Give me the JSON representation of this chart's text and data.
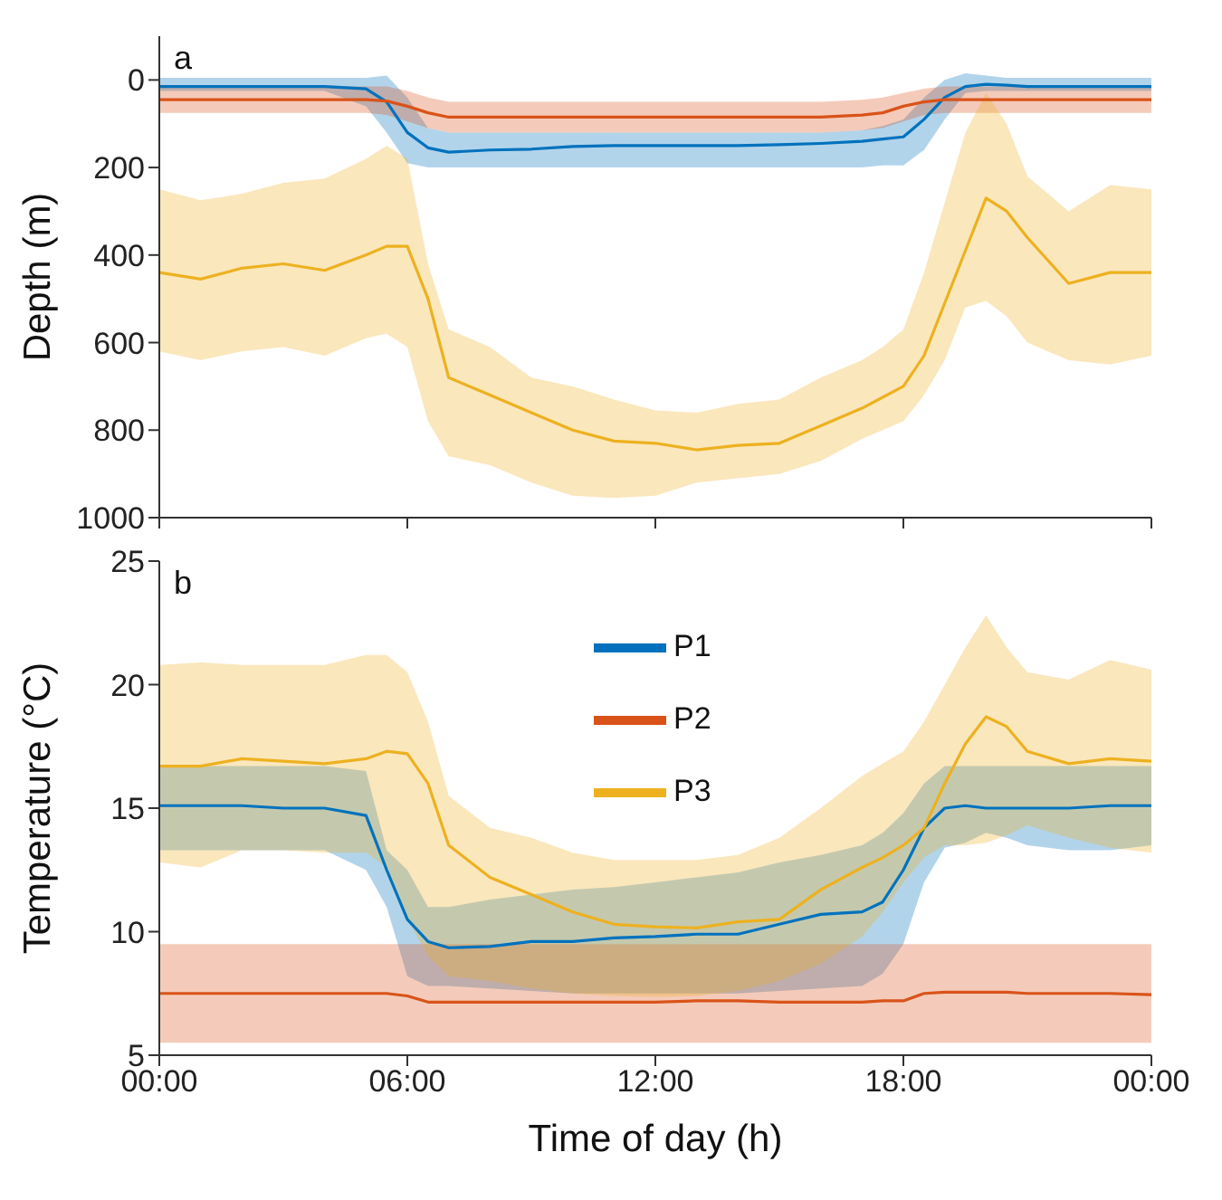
{
  "chart_data": [
    {
      "type": "line",
      "ylabel": "Depth (m)",
      "annotations": [
        "a"
      ],
      "tick_labels": "y",
      "grid": false,
      "marker": "none",
      "x": [
        0,
        1,
        2,
        3,
        4,
        5,
        5.5,
        6,
        6.5,
        7,
        8,
        9,
        10,
        11,
        12,
        13,
        14,
        15,
        16,
        17,
        17.5,
        18,
        18.5,
        19,
        19.5,
        20,
        20.5,
        21,
        22,
        23,
        24
      ],
      "xlim": [
        0,
        24
      ],
      "xticks": [
        0,
        6,
        12,
        18,
        24
      ],
      "ylim": [
        1000,
        -100
      ],
      "yticks": [
        0,
        200,
        400,
        600,
        800,
        1000
      ],
      "series": [
        {
          "color": "#0072bd",
          "values": [
            15,
            15,
            15,
            15,
            15,
            20,
            50,
            120,
            155,
            165,
            160,
            158,
            152,
            150,
            150,
            150,
            150,
            148,
            145,
            140,
            135,
            130,
            90,
            40,
            15,
            10,
            12,
            15,
            15,
            15,
            15
          ],
          "lower": [
            -5,
            -5,
            -5,
            -5,
            -5,
            -5,
            -10,
            40,
            110,
            120,
            120,
            120,
            120,
            120,
            120,
            120,
            120,
            120,
            120,
            115,
            105,
            90,
            40,
            0,
            -15,
            -10,
            -5,
            -5,
            -5,
            -5,
            -5
          ],
          "upper": [
            25,
            25,
            25,
            25,
            25,
            60,
            120,
            190,
            200,
            200,
            200,
            200,
            200,
            200,
            200,
            200,
            200,
            200,
            200,
            200,
            195,
            195,
            160,
            90,
            30,
            25,
            25,
            25,
            25,
            25,
            25
          ]
        },
        {
          "color": "#d95319",
          "values": [
            45,
            45,
            45,
            45,
            45,
            45,
            48,
            60,
            75,
            85,
            85,
            85,
            85,
            85,
            85,
            85,
            85,
            85,
            85,
            80,
            75,
            60,
            50,
            45,
            45,
            45,
            45,
            45,
            45,
            45,
            45
          ],
          "lower": [
            15,
            15,
            15,
            15,
            15,
            15,
            15,
            25,
            40,
            50,
            50,
            50,
            50,
            50,
            50,
            50,
            50,
            50,
            50,
            45,
            40,
            30,
            20,
            15,
            15,
            15,
            15,
            15,
            15,
            15,
            15
          ],
          "upper": [
            75,
            75,
            75,
            75,
            75,
            75,
            80,
            95,
            110,
            120,
            120,
            120,
            120,
            120,
            120,
            120,
            120,
            120,
            120,
            115,
            110,
            95,
            80,
            75,
            75,
            75,
            75,
            75,
            75,
            75,
            75
          ]
        },
        {
          "color": "#edb120",
          "values": [
            440,
            455,
            430,
            420,
            435,
            400,
            380,
            380,
            500,
            680,
            720,
            760,
            800,
            825,
            830,
            845,
            835,
            830,
            790,
            750,
            725,
            700,
            630,
            510,
            390,
            270,
            300,
            360,
            465,
            440,
            440
          ],
          "lower": [
            250,
            275,
            260,
            235,
            225,
            180,
            150,
            180,
            420,
            570,
            610,
            680,
            700,
            730,
            755,
            760,
            740,
            730,
            680,
            640,
            610,
            570,
            440,
            280,
            120,
            30,
            100,
            220,
            300,
            240,
            250
          ],
          "upper": [
            620,
            640,
            620,
            610,
            630,
            590,
            580,
            610,
            780,
            860,
            880,
            920,
            950,
            955,
            950,
            920,
            910,
            900,
            870,
            820,
            800,
            780,
            720,
            640,
            520,
            505,
            540,
            600,
            640,
            650,
            630
          ]
        }
      ]
    },
    {
      "type": "line",
      "xlabel": "Time of day (h)",
      "ylabel": "Temperature (°C)",
      "annotations": [
        "b"
      ],
      "grid": false,
      "marker": "none",
      "legend": "top",
      "x": [
        0,
        1,
        2,
        3,
        4,
        5,
        5.5,
        6,
        6.5,
        7,
        8,
        9,
        10,
        11,
        12,
        13,
        14,
        15,
        16,
        17,
        17.5,
        18,
        18.5,
        19,
        19.5,
        20,
        20.5,
        21,
        22,
        23,
        24
      ],
      "xlim": [
        0,
        24
      ],
      "xticks": [
        {
          "value": 0,
          "label": "00:00"
        },
        {
          "value": 6,
          "label": "06:00"
        },
        {
          "value": 12,
          "label": "12:00"
        },
        {
          "value": 18,
          "label": "18:00"
        },
        {
          "value": 24,
          "label": "00:00"
        }
      ],
      "ylim": [
        5,
        25
      ],
      "yticks": [
        5,
        10,
        15,
        20,
        25
      ],
      "series": [
        {
          "name": "P1",
          "color": "#0072bd",
          "values": [
            15.1,
            15.1,
            15.1,
            15.0,
            15.0,
            14.7,
            12.5,
            10.5,
            9.6,
            9.35,
            9.4,
            9.6,
            9.6,
            9.75,
            9.8,
            9.9,
            9.9,
            10.3,
            10.7,
            10.8,
            11.2,
            12.5,
            14.2,
            15.0,
            15.1,
            15.0,
            15.0,
            15.0,
            15.0,
            15.1,
            15.1
          ],
          "lower": [
            13.3,
            13.3,
            13.3,
            13.3,
            13.3,
            12.5,
            11.0,
            8.2,
            7.8,
            7.8,
            7.7,
            7.6,
            7.5,
            7.5,
            7.5,
            7.5,
            7.5,
            7.6,
            7.7,
            7.8,
            8.3,
            9.5,
            12.0,
            13.4,
            13.6,
            14.0,
            13.8,
            13.5,
            13.3,
            13.3,
            13.5
          ],
          "upper": [
            16.7,
            16.7,
            16.7,
            16.7,
            16.7,
            16.5,
            13.3,
            12.5,
            11.0,
            11.0,
            11.3,
            11.5,
            11.7,
            11.8,
            12.0,
            12.2,
            12.4,
            12.8,
            13.1,
            13.5,
            14.0,
            14.8,
            16.0,
            16.7,
            16.7,
            16.7,
            16.7,
            16.7,
            16.7,
            16.7,
            16.7
          ]
        },
        {
          "name": "P2",
          "color": "#d95319",
          "values": [
            7.5,
            7.5,
            7.5,
            7.5,
            7.5,
            7.5,
            7.5,
            7.4,
            7.15,
            7.15,
            7.15,
            7.15,
            7.15,
            7.15,
            7.15,
            7.2,
            7.2,
            7.15,
            7.15,
            7.15,
            7.2,
            7.2,
            7.5,
            7.55,
            7.55,
            7.55,
            7.55,
            7.5,
            7.5,
            7.5,
            7.45
          ],
          "lower": [
            5.5,
            5.5,
            5.5,
            5.5,
            5.5,
            5.5,
            5.5,
            5.5,
            5.5,
            5.5,
            5.5,
            5.5,
            5.5,
            5.5,
            5.5,
            5.5,
            5.5,
            5.5,
            5.5,
            5.5,
            5.5,
            5.5,
            5.5,
            5.5,
            5.5,
            5.5,
            5.5,
            5.5,
            5.5,
            5.5,
            5.5
          ],
          "upper": [
            9.5,
            9.5,
            9.5,
            9.5,
            9.5,
            9.5,
            9.5,
            9.5,
            9.5,
            9.5,
            9.5,
            9.5,
            9.5,
            9.5,
            9.5,
            9.5,
            9.5,
            9.5,
            9.5,
            9.5,
            9.5,
            9.5,
            9.5,
            9.5,
            9.5,
            9.5,
            9.5,
            9.5,
            9.5,
            9.5,
            9.5
          ]
        },
        {
          "name": "P3",
          "color": "#edb120",
          "values": [
            16.7,
            16.7,
            17.0,
            16.9,
            16.8,
            17.0,
            17.3,
            17.2,
            16.0,
            13.5,
            12.2,
            11.5,
            10.8,
            10.3,
            10.2,
            10.15,
            10.4,
            10.5,
            11.7,
            12.6,
            13.0,
            13.5,
            14.2,
            16.0,
            17.6,
            18.7,
            18.3,
            17.3,
            16.8,
            17.0,
            16.9
          ],
          "lower": [
            12.8,
            12.6,
            13.3,
            13.3,
            13.2,
            13.2,
            12.6,
            10.5,
            9.0,
            8.2,
            8.0,
            7.7,
            7.5,
            7.4,
            7.35,
            7.4,
            7.6,
            8.0,
            8.7,
            9.8,
            10.8,
            12.0,
            13.0,
            13.5,
            13.5,
            13.6,
            13.9,
            14.3,
            13.8,
            13.4,
            13.2
          ],
          "upper": [
            20.8,
            20.9,
            20.8,
            20.8,
            20.8,
            21.2,
            21.2,
            20.5,
            18.5,
            15.5,
            14.2,
            13.8,
            13.2,
            12.9,
            12.9,
            12.9,
            13.1,
            13.8,
            15.0,
            16.3,
            16.8,
            17.3,
            18.5,
            20.0,
            21.5,
            22.8,
            21.5,
            20.5,
            20.2,
            21.0,
            20.6
          ]
        }
      ]
    }
  ]
}
